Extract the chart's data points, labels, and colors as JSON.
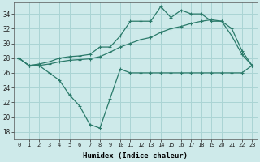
{
  "xlabel": "Humidex (Indice chaleur)",
  "ylabel": "",
  "background_color": "#ceeaea",
  "line_color": "#2a7a6a",
  "grid_color": "#aad4d4",
  "xlim": [
    -0.5,
    23.5
  ],
  "ylim": [
    17,
    35.5
  ],
  "yticks": [
    18,
    20,
    22,
    24,
    26,
    28,
    30,
    32,
    34
  ],
  "xticks": [
    0,
    1,
    2,
    3,
    4,
    5,
    6,
    7,
    8,
    9,
    10,
    11,
    12,
    13,
    14,
    15,
    16,
    17,
    18,
    19,
    20,
    21,
    22,
    23
  ],
  "series1_x": [
    0,
    1,
    2,
    3,
    4,
    5,
    6,
    7,
    8,
    9,
    10,
    11,
    12,
    13,
    14,
    15,
    16,
    17,
    18,
    19,
    20,
    21,
    22,
    23
  ],
  "series1_y": [
    28,
    27,
    27,
    26,
    25,
    23,
    21.5,
    19,
    18.5,
    22.5,
    26.5,
    26,
    26,
    26,
    26,
    26,
    26,
    26,
    26,
    26,
    26,
    26,
    26,
    27
  ],
  "series2_x": [
    0,
    1,
    2,
    3,
    4,
    5,
    6,
    7,
    8,
    9,
    10,
    11,
    12,
    13,
    14,
    15,
    16,
    17,
    18,
    19,
    20,
    21,
    22,
    23
  ],
  "series2_y": [
    28,
    27,
    27,
    27.2,
    27.5,
    27.7,
    27.8,
    27.9,
    28.2,
    28.8,
    29.5,
    30,
    30.5,
    30.8,
    31.5,
    32,
    32.3,
    32.7,
    33,
    33.2,
    33,
    32,
    29,
    27
  ],
  "series3_x": [
    0,
    1,
    2,
    3,
    4,
    5,
    6,
    7,
    8,
    9,
    10,
    11,
    12,
    13,
    14,
    15,
    16,
    17,
    18,
    19,
    20,
    21,
    22,
    23
  ],
  "series3_y": [
    28,
    27,
    27.2,
    27.5,
    28,
    28.2,
    28.3,
    28.5,
    29.5,
    29.5,
    31,
    33,
    33,
    33,
    35,
    33.5,
    34.5,
    34,
    34,
    33,
    33,
    31,
    28.5,
    27
  ]
}
